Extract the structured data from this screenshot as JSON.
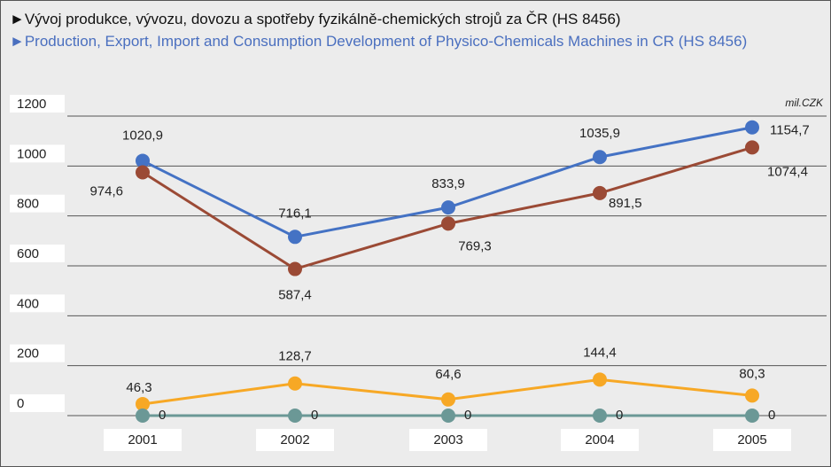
{
  "chart_data": {
    "type": "line",
    "title": "►Vývoj produkce, vývozu, dovozu a spotřeby fyzikálně-chemických strojů za ČR (HS 8456)",
    "subtitle": "►Production, Export, Import and Consumption Development of Physico-Chemicals Machines in CR (HS 8456)",
    "unit_label": "mil.CZK",
    "categories": [
      "2001",
      "2002",
      "2003",
      "2004",
      "2005"
    ],
    "series": [
      {
        "color": "#4472c4",
        "values": [
          1020.9,
          716.1,
          833.9,
          1035.9,
          1154.7
        ],
        "value_labels": [
          "1020,9",
          "716,1",
          "833,9",
          "1035,9",
          "1154,7"
        ]
      },
      {
        "color": "#9b4a35",
        "values": [
          974.6,
          587.4,
          769.3,
          891.5,
          1074.4
        ],
        "value_labels": [
          "974,6",
          "587,4",
          "769,3",
          "891,5",
          "1074,4"
        ]
      },
      {
        "color": "#f7a825",
        "values": [
          46.3,
          128.7,
          64.6,
          144.4,
          80.3
        ],
        "value_labels": [
          "46,3",
          "128,7",
          "64,6",
          "144,4",
          "80,3"
        ]
      },
      {
        "color": "#6b9896",
        "values": [
          0,
          0,
          0,
          0,
          0
        ]
      }
    ],
    "ylim": [
      0,
      1200
    ],
    "yticks": [
      0,
      200,
      400,
      600,
      800,
      1000,
      1200
    ],
    "grid": true
  }
}
